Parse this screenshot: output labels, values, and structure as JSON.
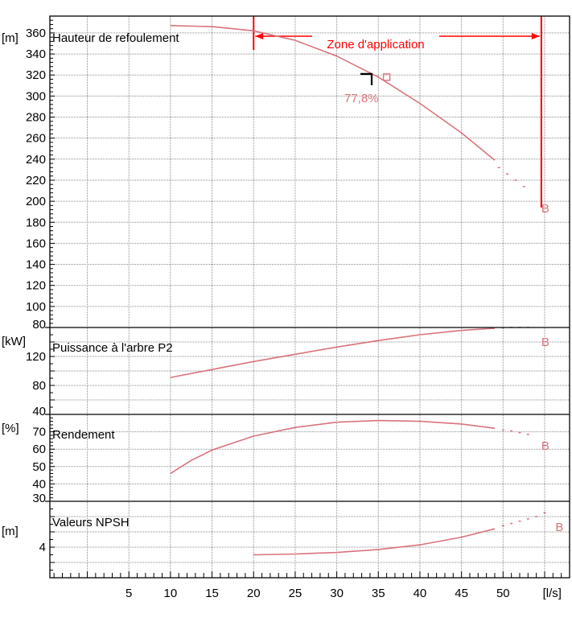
{
  "chart_data": {
    "type": "line",
    "x_axis": {
      "unit": "[l/s]",
      "range": [
        -4.5,
        58.0
      ],
      "ticks": [
        5,
        10,
        15,
        20,
        25,
        30,
        35,
        40,
        45,
        50
      ],
      "minor_step": 1,
      "major_grid_step": 5
    },
    "application_zone": {
      "label": "Zone d'application",
      "x_start": 20,
      "x_end": 54.6
    },
    "point_b": {
      "label": "B",
      "x": 54.6
    },
    "panels": [
      {
        "key": "head",
        "title": "Hauteur de refoulement",
        "unit": "[m]",
        "y_range": [
          80,
          376
        ],
        "ticks": [
          100,
          120,
          140,
          160,
          180,
          200,
          220,
          240,
          260,
          280,
          300,
          320,
          340,
          360
        ],
        "extra_tick_label": "80",
        "major_grid_step": 20,
        "minor_step": 4,
        "series": [
          {
            "style": "solid",
            "points": [
              [
                10,
                367
              ],
              [
                15,
                366
              ],
              [
                20,
                362
              ],
              [
                25,
                353
              ],
              [
                30,
                338
              ],
              [
                35,
                318
              ],
              [
                40,
                293
              ],
              [
                45,
                265
              ],
              [
                49,
                239
              ]
            ]
          },
          {
            "style": "dotted",
            "points": [
              [
                49.5,
                232
              ],
              [
                50.5,
                226
              ],
              [
                51.5,
                220
              ],
              [
                52.5,
                214
              ]
            ]
          }
        ],
        "marker": {
          "x": 36,
          "y": 318,
          "label": "77,8%"
        },
        "b_label_at": [
          54.6,
          200
        ]
      },
      {
        "key": "power",
        "title": "Puissance à l'arbre P2",
        "unit": "[kW]",
        "y_range": [
          40,
          160
        ],
        "ticks": [
          80,
          120
        ],
        "extra_tick_label": "40",
        "major_grid_step": 20,
        "minor_step": 10,
        "series": [
          {
            "style": "solid",
            "points": [
              [
                10,
                91
              ],
              [
                15,
                102
              ],
              [
                20,
                113
              ],
              [
                25,
                123
              ],
              [
                30,
                133
              ],
              [
                35,
                142
              ],
              [
                40,
                150
              ],
              [
                45,
                156
              ],
              [
                49,
                159
              ]
            ]
          },
          {
            "style": "dotted",
            "points": [
              [
                50,
                159.5
              ],
              [
                51,
                160
              ],
              [
                52,
                160
              ],
              [
                53,
                160
              ]
            ]
          }
        ],
        "b_label_at": [
          54.6,
          150
        ]
      },
      {
        "key": "efficiency",
        "title": "Rendement",
        "unit": "[%]",
        "y_range": [
          30,
          80
        ],
        "ticks": [
          40,
          50,
          60,
          70
        ],
        "extra_tick_label": "30",
        "major_grid_step": 10,
        "minor_step": 2,
        "series": [
          {
            "style": "solid",
            "points": [
              [
                10,
                46
              ],
              [
                12.5,
                53.5
              ],
              [
                15,
                59.5
              ],
              [
                20,
                67.5
              ],
              [
                25,
                72.5
              ],
              [
                30,
                75.5
              ],
              [
                35,
                76.5
              ],
              [
                40,
                76
              ],
              [
                45,
                74.5
              ],
              [
                49,
                72
              ]
            ]
          },
          {
            "style": "dotted",
            "points": [
              [
                50,
                71
              ],
              [
                51,
                70.5
              ],
              [
                52,
                69.5
              ],
              [
                53,
                68.5
              ]
            ]
          }
        ],
        "b_label_at": [
          54.6,
          66
        ]
      },
      {
        "key": "npsh",
        "title": "Valeurs NPSH",
        "unit": "[m]",
        "y_range": [
          0,
          10
        ],
        "ticks": [
          4
        ],
        "major_grid_step": 2,
        "minor_step": 1,
        "series": [
          {
            "style": "solid",
            "points": [
              [
                20,
                3.0
              ],
              [
                25,
                3.1
              ],
              [
                30,
                3.3
              ],
              [
                35,
                3.7
              ],
              [
                40,
                4.3
              ],
              [
                45,
                5.3
              ],
              [
                49,
                6.4
              ]
            ]
          },
          {
            "style": "dotted",
            "points": [
              [
                50,
                6.8
              ],
              [
                51,
                7.1
              ],
              [
                52,
                7.4
              ],
              [
                53,
                7.7
              ],
              [
                54,
                8.0
              ],
              [
                55,
                8.5
              ]
            ]
          }
        ],
        "b_label_at": [
          56.3,
          7.6
        ]
      }
    ]
  }
}
